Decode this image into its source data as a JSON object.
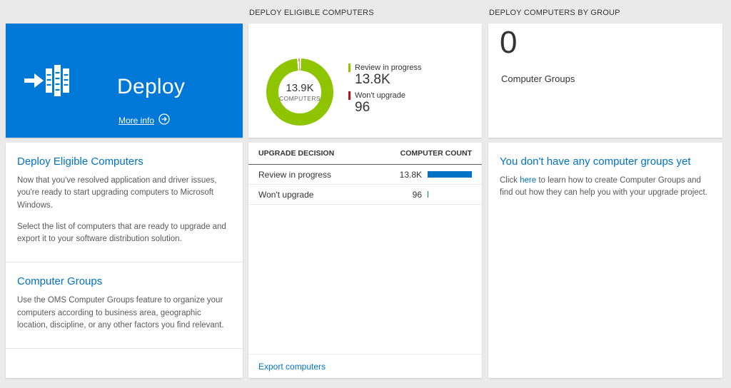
{
  "colors": {
    "accent_blue": "#0078d7",
    "heading_blue": "#0072c6",
    "bar_blue": "#0072c6",
    "green": "#8fc400",
    "red": "#ba141a"
  },
  "left": {
    "tile_title": "Deploy",
    "more_info": "More info",
    "section1": {
      "heading": "Deploy Eligible Computers",
      "p1": "Now that you've resolved application and driver issues, you're ready to start upgrading computers to Microsoft Windows.",
      "p2": "Select the list of computers that are ready to upgrade and export it to your software distribution solution."
    },
    "section2": {
      "heading": "Computer Groups",
      "p1": "Use the OMS Computer Groups feature to organize your computers according to business area, geographic location, discipline, or any other factors you find relevant."
    }
  },
  "middle": {
    "column_header": "DEPLOY ELIGIBLE COMPUTERS",
    "donut_center_value": "13.9K",
    "donut_center_label": "COMPUTERS",
    "legend": [
      {
        "label": "Review in progress",
        "value": "13.8K",
        "color": "#8fc400"
      },
      {
        "label": "Won't upgrade",
        "value": "96",
        "color": "#ba141a"
      }
    ],
    "table": {
      "col1": "UPGRADE DECISION",
      "col2": "COMPUTER COUNT",
      "rows": [
        {
          "label": "Review in progress",
          "value": "13.8K",
          "bar_pct": 100
        },
        {
          "label": "Won't upgrade",
          "value": "96",
          "bar_pct": 2
        }
      ]
    },
    "export_link": "Export computers"
  },
  "right": {
    "column_header": "DEPLOY COMPUTERS BY GROUP",
    "count": "0",
    "count_label": "Computer Groups",
    "empty_heading": "You don't have any computer groups yet",
    "empty_text_before": "Click",
    "empty_link": "here",
    "empty_text_after": "to learn how to create Computer Groups and find out how they can help you with your upgrade project."
  },
  "chart_data": {
    "type": "pie",
    "title": "Deploy Eligible Computers",
    "center_value": "13.9K",
    "center_label": "COMPUTERS",
    "legend_position": "right",
    "slices": [
      {
        "label": "Review in progress",
        "value": 13800,
        "display": "13.8K",
        "color": "#8fc400"
      },
      {
        "label": "Won't upgrade",
        "value": 96,
        "display": "96",
        "color": "#ba141a"
      }
    ]
  }
}
